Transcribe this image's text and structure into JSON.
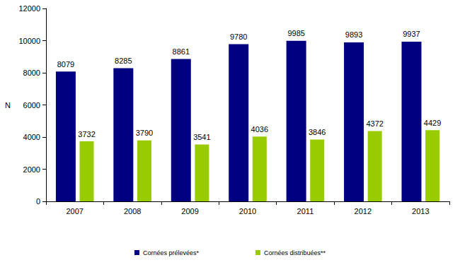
{
  "chart_data": {
    "type": "bar",
    "categories": [
      "2007",
      "2008",
      "2009",
      "2010",
      "2011",
      "2012",
      "2013"
    ],
    "series": [
      {
        "name": "Cornées prélevées*",
        "color": "#000080",
        "values": [
          8079,
          8285,
          8861,
          9780,
          9985,
          9893,
          9937
        ]
      },
      {
        "name": "Cornées distribuées**",
        "color": "#99CC00",
        "values": [
          3732,
          3790,
          3541,
          4036,
          3846,
          4372,
          4429
        ]
      }
    ],
    "ylabel": "N",
    "ylim": [
      0,
      12000
    ],
    "yticks": [
      0,
      2000,
      4000,
      6000,
      8000,
      10000,
      12000
    ],
    "grid": false,
    "legend": "bottom",
    "data_labels": true
  }
}
